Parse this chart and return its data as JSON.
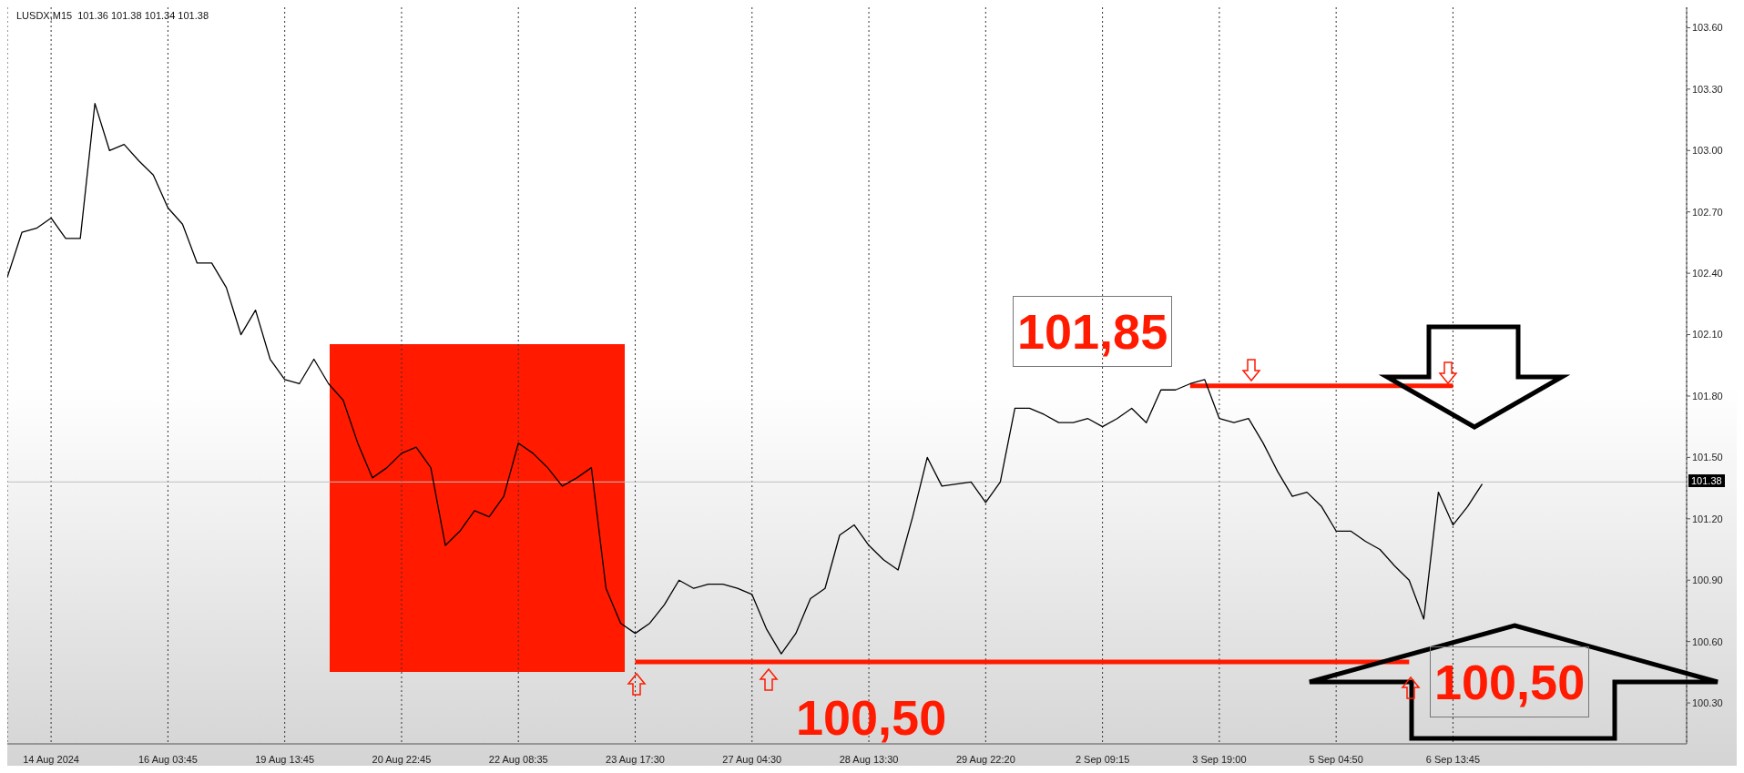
{
  "chart_data": {
    "type": "line",
    "title": "LUSDX,M15  101.36 101.38 101.34 101.38",
    "categories": [
      null,
      null,
      null,
      "14 Aug 2024",
      null,
      null,
      null,
      null,
      null,
      null,
      null,
      "16 Aug 03:45",
      null,
      null,
      null,
      null,
      null,
      null,
      null,
      "19 Aug 13:45",
      null,
      null,
      null,
      null,
      null,
      null,
      null,
      "20 Aug 22:45",
      null,
      null,
      null,
      null,
      null,
      null,
      null,
      "22 Aug 08:35",
      null,
      null,
      null,
      null,
      null,
      null,
      null,
      "23 Aug 17:30",
      null,
      null,
      null,
      null,
      null,
      null,
      null,
      "27 Aug 04:30",
      null,
      null,
      null,
      null,
      null,
      null,
      null,
      "28 Aug 13:30",
      null,
      null,
      null,
      null,
      null,
      null,
      null,
      "29 Aug 22:20",
      null,
      null,
      null,
      null,
      null,
      null,
      null,
      "2 Sep 09:15",
      null,
      null,
      null,
      null,
      null,
      null,
      null,
      "3 Sep 19:00",
      null,
      null,
      null,
      null,
      null,
      null,
      null,
      "5 Sep 04:50",
      null,
      null,
      null,
      null,
      null,
      null,
      null,
      "6 Sep 13:45",
      null,
      null,
      null,
      null,
      null,
      null,
      null,
      null,
      null,
      null,
      null,
      null,
      null,
      null,
      null,
      null
    ],
    "series": [
      {
        "color": "#000000",
        "values": [
          102.38,
          102.6,
          102.62,
          102.67,
          102.57,
          102.57,
          103.23,
          103.0,
          103.03,
          102.95,
          102.88,
          102.72,
          102.64,
          102.45,
          102.45,
          102.33,
          102.1,
          102.22,
          101.98,
          101.88,
          101.86,
          101.98,
          101.86,
          101.78,
          101.57,
          101.4,
          101.45,
          101.52,
          101.55,
          101.45,
          101.07,
          101.14,
          101.24,
          101.21,
          101.31,
          101.57,
          101.52,
          101.45,
          101.36,
          101.4,
          101.45,
          100.86,
          100.69,
          100.64,
          100.69,
          100.78,
          100.9,
          100.86,
          100.88,
          100.88,
          100.86,
          100.83,
          100.66,
          100.54,
          100.64,
          100.81,
          100.86,
          101.12,
          101.17,
          101.07,
          101.0,
          100.95,
          101.21,
          101.5,
          101.36,
          101.37,
          101.38,
          101.28,
          101.38,
          101.74,
          101.74,
          101.71,
          101.67,
          101.67,
          101.69,
          101.65,
          101.69,
          101.74,
          101.67,
          101.83,
          101.83,
          101.86,
          101.88,
          101.69,
          101.67,
          101.69,
          101.57,
          101.43,
          101.31,
          101.33,
          101.26,
          101.14,
          101.14,
          101.09,
          101.05,
          100.97,
          100.9,
          100.71,
          101.33,
          101.17,
          101.26,
          101.37,
          null,
          null,
          null,
          null,
          null,
          null,
          null,
          null,
          null,
          null,
          null,
          null,
          null,
          null
        ]
      }
    ],
    "ylim": [
      100.1,
      103.7
    ],
    "yticks": [
      {
        "value": 100.3,
        "label": "100.30"
      },
      {
        "value": 100.6,
        "label": "100.60"
      },
      {
        "value": 100.9,
        "label": "100.90"
      },
      {
        "value": 101.2,
        "label": "101.20"
      },
      {
        "value": 101.5,
        "label": "101.50"
      },
      {
        "value": 101.8,
        "label": "101.80"
      },
      {
        "value": 102.1,
        "label": "102.10"
      },
      {
        "value": 102.4,
        "label": "102.40"
      },
      {
        "value": 102.7,
        "label": "102.70"
      },
      {
        "value": 103.0,
        "label": "103.00"
      },
      {
        "value": 103.3,
        "label": "103.30"
      },
      {
        "value": 103.6,
        "label": "103.60"
      }
    ],
    "grid": "x",
    "marker": "none",
    "ref_lines": [
      {
        "axis": "y",
        "value": 101.85,
        "label": "101,85",
        "color": "#ff1a00"
      },
      {
        "axis": "y",
        "value": 100.5,
        "label": "100,50",
        "color": "#ff1a00"
      },
      {
        "axis": "y",
        "value": 101.38,
        "label": "101.38",
        "color": "#c0c0c0"
      }
    ],
    "annotations": [
      "100,50"
    ]
  }
}
